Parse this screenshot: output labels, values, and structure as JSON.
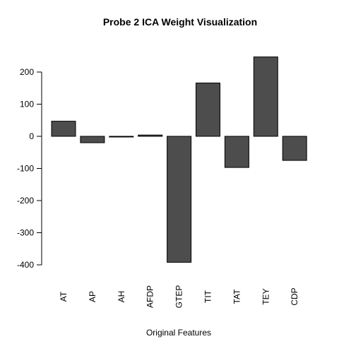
{
  "chart_data": {
    "type": "bar",
    "title": "Probe 2 ICA Weight Visualization",
    "xlabel": "Original Features",
    "ylabel": "",
    "categories": [
      "AT",
      "AP",
      "AH",
      "AFDP",
      "GTEP",
      "TIT",
      "TAT",
      "TEY",
      "CDP"
    ],
    "values": [
      47,
      -20,
      -2,
      4,
      -392,
      166,
      -97,
      247,
      -75
    ],
    "ylim": [
      -400,
      250
    ],
    "yticks": [
      -400,
      -300,
      -200,
      -100,
      0,
      100,
      200
    ],
    "ytick_labels": [
      "-400",
      "-300",
      "-200",
      "-100",
      "0",
      "100",
      "200"
    ],
    "grid": false,
    "legend": "none",
    "colors": {
      "bar_fill": "#4d4d4d",
      "bar_stroke": "#000000",
      "axis": "#000000",
      "text": "#000000"
    }
  }
}
